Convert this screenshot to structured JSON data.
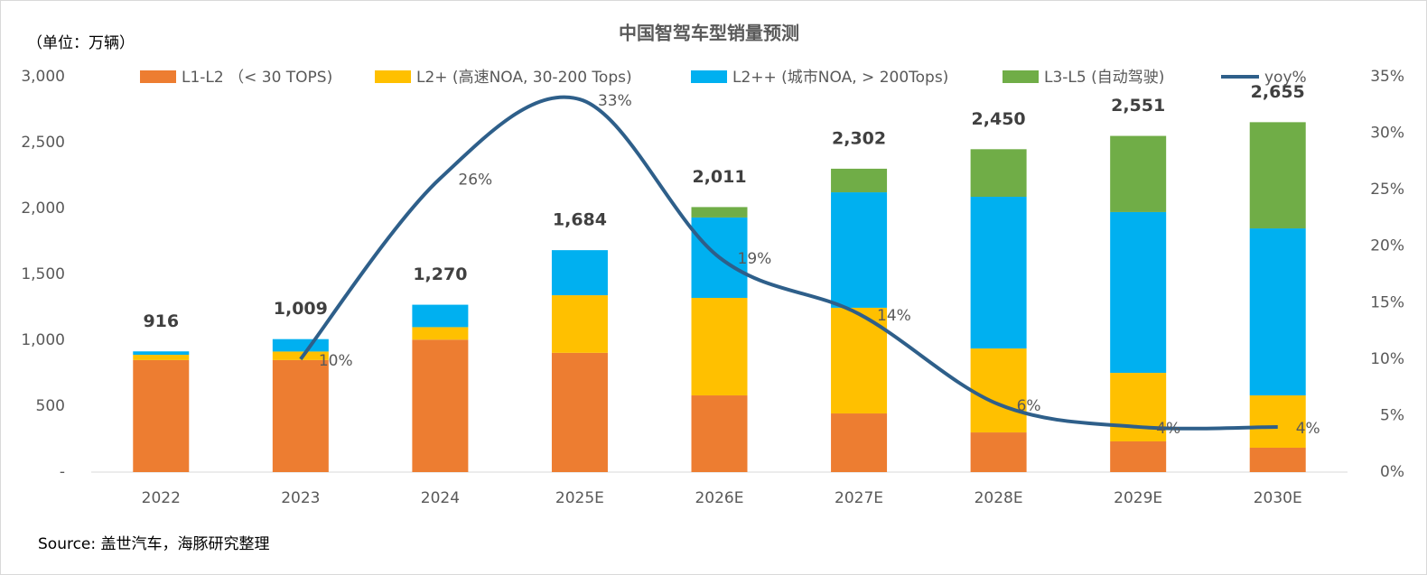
{
  "chart_data": {
    "type": "bar",
    "title": "中国智驾车型销量预测",
    "unit_label": "（单位：万辆）",
    "source": "Source: 盖世汽车，海豚研究整理",
    "categories": [
      "2022",
      "2023",
      "2024",
      "2025E",
      "2026E",
      "2027E",
      "2028E",
      "2029E",
      "2030E"
    ],
    "series": [
      {
        "name": "L1-L2 （< 30 TOPS)",
        "color": "#ED7D31",
        "values": [
          850,
          850,
          1005,
          905,
          582,
          445,
          301,
          233,
          185
        ]
      },
      {
        "name": "L2+ (高速NOA, 30-200 Tops)",
        "color": "#FFC000",
        "values": [
          40,
          65,
          95,
          437,
          740,
          802,
          637,
          520,
          397
        ]
      },
      {
        "name": "L2++ (城市NOA, > 200Tops)",
        "color": "#00B0F0",
        "values": [
          26,
          94,
          170,
          342,
          610,
          876,
          1151,
          1220,
          1267
        ]
      },
      {
        "name": "L3-L5 (自动驾驶)",
        "color": "#70AD47",
        "values": [
          0,
          0,
          0,
          0,
          79,
          179,
          361,
          578,
          806
        ]
      },
      {
        "name": "yoy%",
        "color": "#2E5F8A",
        "type": "line",
        "axis": "y2",
        "values": [
          null,
          10,
          26,
          33,
          19,
          14,
          6,
          4,
          4
        ],
        "value_labels": [
          null,
          "10%",
          "26%",
          "33%",
          "19%",
          "14%",
          "6%",
          "4%",
          "4%"
        ]
      }
    ],
    "totals": [
      916,
      1009,
      1270,
      1684,
      2011,
      2302,
      2450,
      2551,
      2655
    ],
    "total_labels": [
      "916",
      "1,009",
      "1,270",
      "1,684",
      "2,011",
      "2,302",
      "2,450",
      "2,551",
      "2,655"
    ],
    "ylim": [
      0,
      3000
    ],
    "yticks": [
      {
        "value": 0,
        "label": "-"
      },
      500,
      {
        "value": 1000,
        "label": "1,000"
      },
      {
        "value": 1500,
        "label": "1,500"
      },
      {
        "value": 2000,
        "label": "2,000"
      },
      {
        "value": 2500,
        "label": "2,500"
      },
      {
        "value": 3000,
        "label": "3,000"
      }
    ],
    "y2lim": [
      0,
      35
    ],
    "y2ticks": [
      {
        "value": 0,
        "label": "0%"
      },
      {
        "value": 5,
        "label": "5%"
      },
      {
        "value": 10,
        "label": "10%"
      },
      {
        "value": 15,
        "label": "15%"
      },
      {
        "value": 20,
        "label": "20%"
      },
      {
        "value": 25,
        "label": "25%"
      },
      {
        "value": 30,
        "label": "30%"
      },
      {
        "value": 35,
        "label": "35%"
      }
    ],
    "stacked": true
  }
}
